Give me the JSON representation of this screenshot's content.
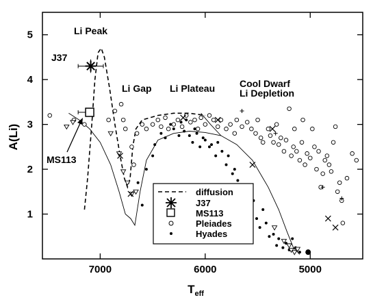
{
  "chart_data": {
    "type": "scatter",
    "xlabel_main": "T",
    "xlabel_sub": "eff",
    "ylabel": "A(Li)",
    "xlim": [
      7550,
      4500
    ],
    "ylim": [
      0,
      5.5
    ],
    "x_ticks": [
      7000,
      6000,
      5000
    ],
    "y_ticks": [
      1,
      2,
      3,
      4,
      5
    ],
    "annotations": {
      "li_peak": "Li Peak",
      "li_gap": "Li Gap",
      "li_plateau": "Li Plateau",
      "cool_dwarf_1": "Cool Dwarf",
      "cool_dwarf_2": "Li Depletion",
      "j37": "J37",
      "ms113": "MS113"
    },
    "legend": {
      "diffusion": "diffusion",
      "j37": "J37",
      "ms113": "MS113",
      "pleiades": "Pleiades",
      "hyades": "Hyades"
    },
    "series": [
      {
        "name": "diffusion",
        "kind": "dashed-line",
        "points": [
          [
            7150,
            1.1
          ],
          [
            7120,
            1.8
          ],
          [
            7080,
            3.0
          ],
          [
            7050,
            4.0
          ],
          [
            7020,
            4.6
          ],
          [
            6990,
            4.7
          ],
          [
            6960,
            4.5
          ],
          [
            6910,
            3.8
          ],
          [
            6860,
            3.0
          ],
          [
            6810,
            2.3
          ],
          [
            6770,
            1.8
          ],
          [
            6740,
            1.6
          ],
          [
            6715,
            1.8
          ],
          [
            6690,
            2.5
          ],
          [
            6660,
            2.9
          ],
          [
            6600,
            3.1
          ],
          [
            6450,
            3.2
          ],
          [
            6300,
            3.25
          ],
          [
            6150,
            3.25
          ],
          [
            6000,
            3.2
          ]
        ]
      },
      {
        "name": "model",
        "kind": "thin-line",
        "points": [
          [
            7300,
            3.25
          ],
          [
            7200,
            3.1
          ],
          [
            7100,
            2.9
          ],
          [
            7000,
            2.6
          ],
          [
            6900,
            2.1
          ],
          [
            6820,
            1.5
          ],
          [
            6760,
            1.0
          ],
          [
            6710,
            0.9
          ],
          [
            6670,
            0.75
          ],
          [
            6620,
            1.5
          ],
          [
            6560,
            2.2
          ],
          [
            6450,
            2.65
          ],
          [
            6300,
            2.8
          ],
          [
            6150,
            2.85
          ],
          [
            6000,
            2.82
          ],
          [
            5850,
            2.75
          ],
          [
            5700,
            2.55
          ],
          [
            5550,
            2.2
          ],
          [
            5400,
            1.6
          ],
          [
            5300,
            1.1
          ],
          [
            5220,
            0.6
          ],
          [
            5160,
            0.25
          ],
          [
            5100,
            0.1
          ]
        ]
      },
      {
        "name": "model-2",
        "kind": "thin-line",
        "points": [
          [
            6040,
            3.25
          ],
          [
            5950,
            3.0
          ],
          [
            5850,
            2.75
          ]
        ]
      },
      {
        "name": "J37",
        "kind": "asterisk",
        "points": [
          [
            7090,
            4.3
          ]
        ],
        "xerr": 120,
        "yerr": 0.15
      },
      {
        "name": "MS113",
        "kind": "open-square",
        "points": [
          [
            7100,
            3.27
          ]
        ],
        "xerr": 110
      },
      {
        "name": "Pleiades",
        "kind": "open-circle",
        "points": [
          [
            7480,
            3.2
          ],
          [
            7250,
            3.1
          ],
          [
            7150,
            3.0
          ],
          [
            6920,
            3.1
          ],
          [
            6860,
            3.3
          ],
          [
            6800,
            3.45
          ],
          [
            6780,
            3.1
          ],
          [
            6760,
            2.9
          ],
          [
            6700,
            2.5
          ],
          [
            6680,
            2.1
          ],
          [
            6650,
            2.8
          ],
          [
            6600,
            3.0
          ],
          [
            6560,
            2.9
          ],
          [
            6500,
            3.0
          ],
          [
            6450,
            3.1
          ],
          [
            6420,
            2.95
          ],
          [
            6380,
            3.15
          ],
          [
            6350,
            2.9
          ],
          [
            6300,
            3.0
          ],
          [
            6260,
            3.1
          ],
          [
            6220,
            2.95
          ],
          [
            6180,
            3.2
          ],
          [
            6140,
            3.05
          ],
          [
            6100,
            3.1
          ],
          [
            6070,
            2.9
          ],
          [
            6040,
            3.15
          ],
          [
            6000,
            3.0
          ],
          [
            5960,
            3.2
          ],
          [
            5920,
            3.1
          ],
          [
            5880,
            2.95
          ],
          [
            5850,
            3.1
          ],
          [
            5800,
            2.9
          ],
          [
            5760,
            3.0
          ],
          [
            5720,
            2.8
          ],
          [
            5700,
            3.1
          ],
          [
            5650,
            2.95
          ],
          [
            5600,
            3.05
          ],
          [
            5560,
            2.9
          ],
          [
            5520,
            2.8
          ],
          [
            5500,
            3.1
          ],
          [
            5470,
            2.7
          ],
          [
            5450,
            2.6
          ],
          [
            5400,
            2.9
          ],
          [
            5380,
            2.75
          ],
          [
            5350,
            2.6
          ],
          [
            5320,
            3.0
          ],
          [
            5300,
            2.55
          ],
          [
            5280,
            2.7
          ],
          [
            5250,
            2.4
          ],
          [
            5230,
            2.65
          ],
          [
            5200,
            3.35
          ],
          [
            5180,
            2.3
          ],
          [
            5160,
            2.5
          ],
          [
            5150,
            2.9
          ],
          [
            5130,
            2.4
          ],
          [
            5100,
            2.2
          ],
          [
            5080,
            2.6
          ],
          [
            5070,
            3.1
          ],
          [
            5050,
            2.1
          ],
          [
            5030,
            2.35
          ],
          [
            5000,
            2.25
          ],
          [
            4980,
            2.9
          ],
          [
            4960,
            2.5
          ],
          [
            4940,
            2.0
          ],
          [
            4920,
            2.4
          ],
          [
            4900,
            1.6
          ],
          [
            4880,
            1.9
          ],
          [
            4860,
            2.2
          ],
          [
            4840,
            2.3
          ],
          [
            4820,
            2.1
          ],
          [
            4800,
            1.95
          ],
          [
            4780,
            2.6
          ],
          [
            4760,
            2.95
          ],
          [
            4740,
            1.5
          ],
          [
            4720,
            1.7
          ],
          [
            4700,
            1.3
          ],
          [
            4690,
            0.8
          ],
          [
            4650,
            1.8
          ],
          [
            4600,
            2.35
          ],
          [
            4560,
            2.2
          ]
        ]
      },
      {
        "name": "Hyades",
        "kind": "dot",
        "points": [
          [
            6640,
            1.7
          ],
          [
            6600,
            1.2
          ],
          [
            6560,
            2.0
          ],
          [
            6500,
            2.3
          ],
          [
            6480,
            2.55
          ],
          [
            6420,
            2.8
          ],
          [
            6380,
            2.7
          ],
          [
            6330,
            3.0
          ],
          [
            6300,
            2.9
          ],
          [
            6250,
            2.75
          ],
          [
            6230,
            3.05
          ],
          [
            6200,
            2.85
          ],
          [
            6180,
            3.1
          ],
          [
            6150,
            2.75
          ],
          [
            6120,
            2.6
          ],
          [
            6100,
            2.9
          ],
          [
            6080,
            2.8
          ],
          [
            6050,
            2.5
          ],
          [
            6020,
            2.7
          ],
          [
            6000,
            2.65
          ],
          [
            5960,
            2.5
          ],
          [
            5940,
            2.55
          ],
          [
            5900,
            2.3
          ],
          [
            5880,
            2.6
          ],
          [
            5840,
            2.4
          ],
          [
            5800,
            2.1
          ],
          [
            5780,
            2.3
          ],
          [
            5740,
            1.9
          ],
          [
            5720,
            2.0
          ],
          [
            5690,
            1.75
          ],
          [
            5660,
            1.6
          ],
          [
            5620,
            1.4
          ],
          [
            5600,
            1.2
          ],
          [
            5570,
            1.0
          ],
          [
            5540,
            1.3
          ],
          [
            5510,
            0.9
          ],
          [
            5480,
            0.7
          ],
          [
            5450,
            1.1
          ],
          [
            5420,
            0.8
          ],
          [
            5390,
            0.5
          ],
          [
            5350,
            0.55
          ],
          [
            5320,
            0.3
          ],
          [
            5300,
            0.45
          ],
          [
            5260,
            0.25
          ],
          [
            5230,
            0.35
          ],
          [
            5200,
            0.2
          ],
          [
            5170,
            0.45
          ],
          [
            5140,
            0.25
          ],
          [
            5100,
            0.15
          ]
        ]
      },
      {
        "name": "open-triangle",
        "kind": "open-triangle",
        "points": [
          [
            7320,
            2.95
          ],
          [
            7260,
            3.05
          ],
          [
            6900,
            2.8
          ],
          [
            6820,
            2.35
          ],
          [
            6780,
            1.95
          ],
          [
            6740,
            1.7
          ],
          [
            6700,
            1.45
          ],
          [
            6660,
            1.5
          ],
          [
            5340,
            0.7
          ],
          [
            5250,
            0.4
          ],
          [
            5200,
            0.3
          ],
          [
            5180,
            0.2
          ],
          [
            5150,
            0.15
          ],
          [
            5120,
            0.22
          ]
        ]
      },
      {
        "name": "cross",
        "kind": "x",
        "points": [
          [
            6810,
            2.3
          ],
          [
            6710,
            1.45
          ],
          [
            6210,
            3.15
          ],
          [
            5880,
            3.1
          ],
          [
            5550,
            2.1
          ],
          [
            5360,
            2.9
          ],
          [
            4830,
            0.9
          ],
          [
            4760,
            0.7
          ]
        ]
      },
      {
        "name": "plus",
        "kind": "plus",
        "points": [
          [
            5650,
            3.3
          ],
          [
            5330,
            2.8
          ],
          [
            4880,
            1.6
          ],
          [
            4700,
            1.35
          ]
        ]
      },
      {
        "name": "big-dot",
        "kind": "big-dot",
        "points": [
          [
            5020,
            0.15
          ]
        ]
      }
    ]
  }
}
